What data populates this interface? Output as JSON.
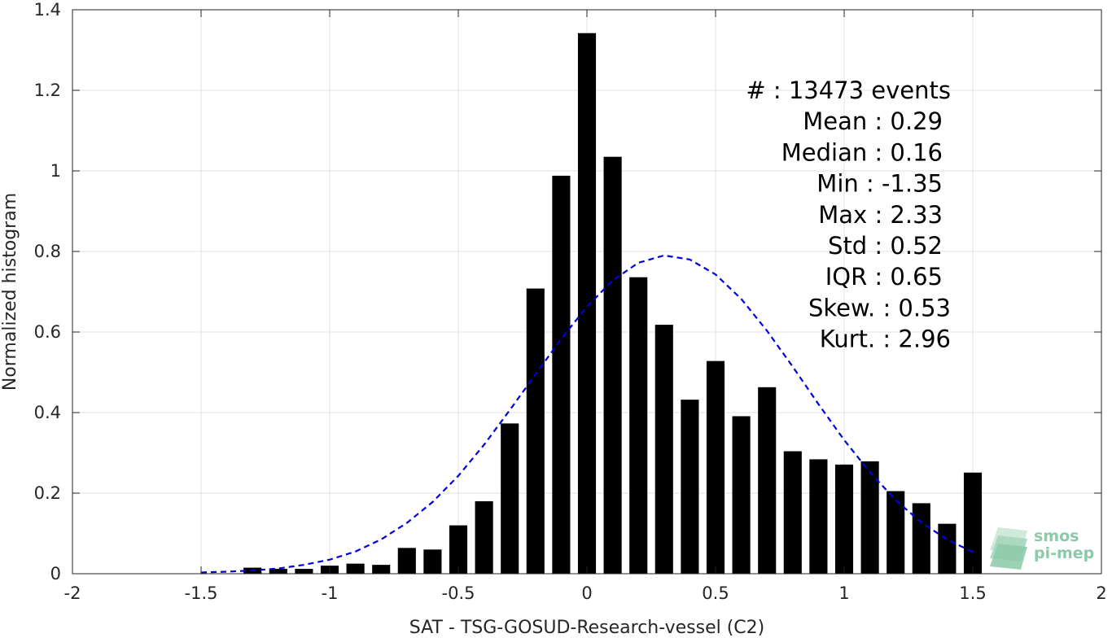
{
  "chart_data": {
    "type": "bar",
    "xlabel": "SAT - TSG-GOSUD-Research-vessel (C2)",
    "ylabel": "Normalized histogram",
    "xlim": [
      -2,
      2
    ],
    "ylim": [
      0,
      1.4
    ],
    "xticks": [
      -2,
      -1.5,
      -1,
      -0.5,
      0,
      0.5,
      1,
      1.5,
      2
    ],
    "xtick_labels": [
      "-2",
      "-1.5",
      "-1",
      "-0.5",
      "0",
      "0.5",
      "1",
      "1.5",
      "2"
    ],
    "yticks": [
      0,
      0.2,
      0.4,
      0.6,
      0.8,
      1,
      1.2,
      1.4
    ],
    "ytick_labels": [
      "0",
      "0.2",
      "0.4",
      "0.6",
      "0.8",
      "1",
      "1.2",
      "1.4"
    ],
    "grid": true,
    "bar_width": 0.07,
    "x": [
      -1.3,
      -1.2,
      -1.1,
      -1.0,
      -0.9,
      -0.8,
      -0.7,
      -0.6,
      -0.5,
      -0.4,
      -0.3,
      -0.2,
      -0.1,
      0.0,
      0.1,
      0.2,
      0.3,
      0.4,
      0.5,
      0.6,
      0.7,
      0.8,
      0.9,
      1.0,
      1.1,
      1.2,
      1.3,
      1.4,
      1.5
    ],
    "values": [
      0.015,
      0.012,
      0.012,
      0.02,
      0.025,
      0.022,
      0.064,
      0.06,
      0.12,
      0.18,
      0.373,
      0.708,
      0.988,
      1.342,
      1.035,
      0.736,
      0.618,
      0.432,
      0.528,
      0.391,
      0.463,
      0.304,
      0.284,
      0.271,
      0.279,
      0.205,
      0.175,
      0.124,
      0.251
    ],
    "bar_color": "#000000",
    "fit_curve": {
      "style": "dashed",
      "color": "#0000dd",
      "x": [
        -1.5,
        -1.4,
        -1.3,
        -1.2,
        -1.1,
        -1.0,
        -0.9,
        -0.8,
        -0.7,
        -0.6,
        -0.5,
        -0.4,
        -0.3,
        -0.2,
        -0.1,
        0.0,
        0.1,
        0.2,
        0.3,
        0.4,
        0.5,
        0.6,
        0.7,
        0.8,
        0.9,
        1.0,
        1.1,
        1.2,
        1.3,
        1.4,
        1.5
      ],
      "y": [
        0.003,
        0.005,
        0.008,
        0.013,
        0.022,
        0.035,
        0.055,
        0.085,
        0.126,
        0.178,
        0.243,
        0.32,
        0.406,
        0.495,
        0.583,
        0.663,
        0.728,
        0.772,
        0.79,
        0.78,
        0.743,
        0.682,
        0.603,
        0.514,
        0.421,
        0.332,
        0.252,
        0.183,
        0.127,
        0.085,
        0.054
      ]
    },
    "stats": [
      {
        "text": "#  : 13473 events",
        "anchor": "end"
      },
      {
        "text": "Mean : 0.29",
        "anchor": "end"
      },
      {
        "text": "Median : 0.16",
        "anchor": "end"
      },
      {
        "text": "Min : -1.35",
        "anchor": "end"
      },
      {
        "text": "Max : 2.33",
        "anchor": "end"
      },
      {
        "text": "Std : 0.52",
        "anchor": "end"
      },
      {
        "text": "IQR : 0.65",
        "anchor": "end"
      },
      {
        "text": "Skew. : 0.53",
        "anchor": "end"
      },
      {
        "text": "Kurt. : 2.96",
        "anchor": "end"
      }
    ],
    "logo": {
      "line1": "smos",
      "line2": "pi-mep",
      "color": "#8cc9a8"
    }
  }
}
